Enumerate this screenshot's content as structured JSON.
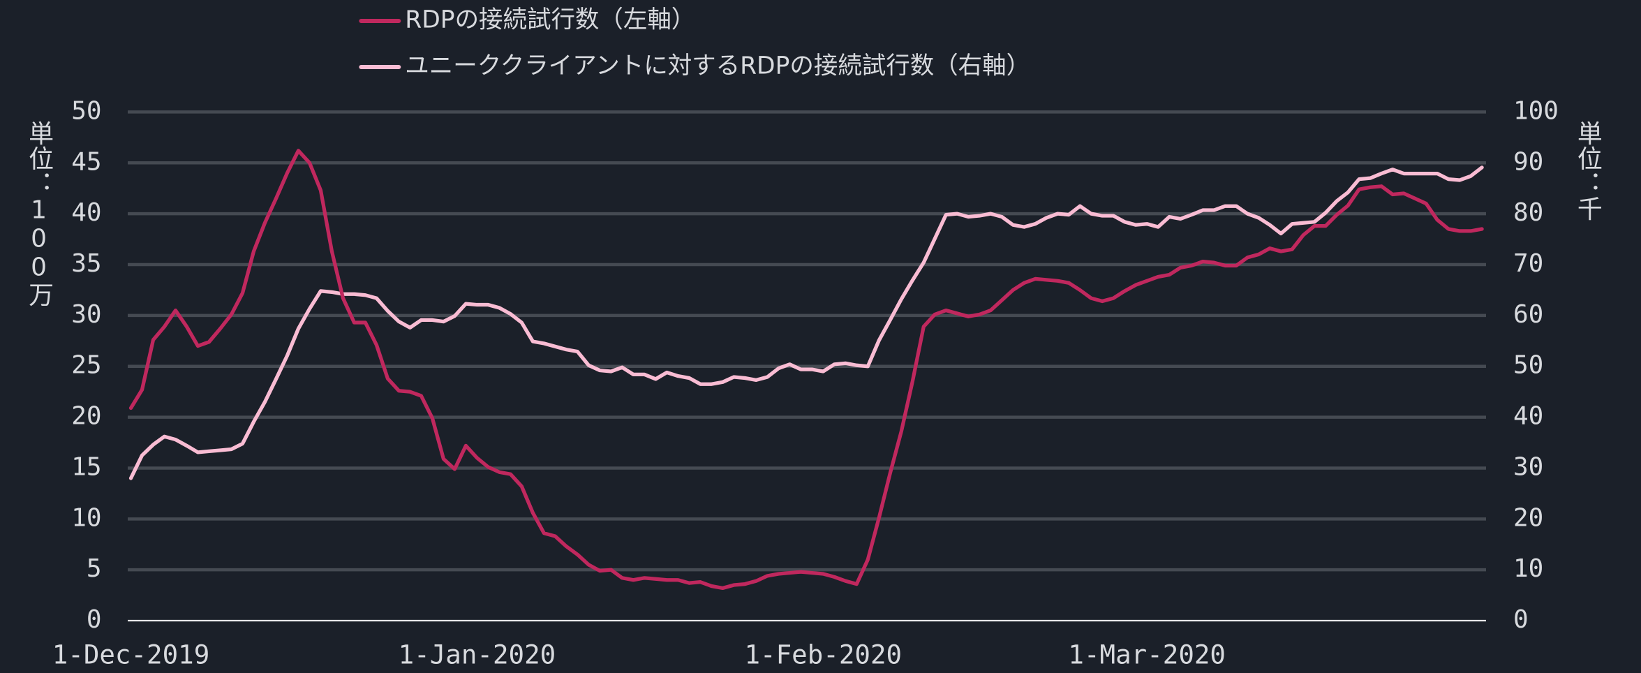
{
  "chart_data": {
    "type": "line",
    "legend": "top",
    "grid": true,
    "y_label": "単位：100万",
    "y2_label": "単位：千",
    "categories": [
      "1-Dec-2019",
      null,
      null,
      null,
      null,
      null,
      null,
      null,
      null,
      null,
      null,
      null,
      null,
      null,
      null,
      null,
      null,
      null,
      null,
      null,
      null,
      null,
      null,
      null,
      null,
      null,
      null,
      null,
      null,
      null,
      null,
      "1-Jan-2020",
      null,
      null,
      null,
      null,
      null,
      null,
      null,
      null,
      null,
      null,
      null,
      null,
      null,
      null,
      null,
      null,
      null,
      null,
      null,
      null,
      null,
      null,
      null,
      null,
      null,
      null,
      null,
      null,
      null,
      null,
      "1-Feb-2020",
      null,
      null,
      null,
      null,
      null,
      null,
      null,
      null,
      null,
      null,
      null,
      null,
      null,
      null,
      null,
      null,
      null,
      null,
      null,
      null,
      null,
      null,
      null,
      null,
      null,
      null,
      null,
      null,
      "1-Mar-2020",
      null,
      null,
      null,
      null,
      null,
      null,
      null,
      null,
      null,
      null,
      null,
      null,
      null,
      null,
      null,
      null,
      null,
      null,
      null,
      null,
      null,
      null,
      null,
      null,
      null,
      null,
      null,
      null,
      null,
      null
    ],
    "ylim": [
      0,
      50
    ],
    "yticks": [
      0,
      5,
      10,
      15,
      20,
      25,
      30,
      35,
      40,
      45,
      50
    ],
    "y2lim": [
      0,
      100
    ],
    "y2ticks": [
      0,
      10,
      20,
      30,
      40,
      50,
      60,
      70,
      80,
      90,
      100
    ],
    "series": [
      {
        "name": "RDPの接続試行数（左軸）",
        "color": "#c0285e",
        "axis": "y",
        "values": [
          20.9,
          22.7,
          27.6,
          28.9,
          30.5,
          28.9,
          27.0,
          27.4,
          28.7,
          30.1,
          32.2,
          36.3,
          39.1,
          41.5,
          44.0,
          46.2,
          45.0,
          42.3,
          36.3,
          31.7,
          29.3,
          29.3,
          27.1,
          23.8,
          22.6,
          22.5,
          22.1,
          19.9,
          15.9,
          14.9,
          17.2,
          16.0,
          15.1,
          14.6,
          14.4,
          13.2,
          10.6,
          8.6,
          8.3,
          7.3,
          6.5,
          5.5,
          4.9,
          5.0,
          4.2,
          4.0,
          4.2,
          4.1,
          4.0,
          4.0,
          3.7,
          3.8,
          3.4,
          3.2,
          3.5,
          3.6,
          3.9,
          4.4,
          4.6,
          4.7,
          4.8,
          4.7,
          4.6,
          4.3,
          3.9,
          3.6,
          6.0,
          10.1,
          14.5,
          18.6,
          23.5,
          28.9,
          30.1,
          30.5,
          30.2,
          29.9,
          30.1,
          30.5,
          31.5,
          32.5,
          33.2,
          33.6,
          33.5,
          33.4,
          33.2,
          32.5,
          31.7,
          31.4,
          31.7,
          32.4,
          33.0,
          33.4,
          33.8,
          34.0,
          34.7,
          34.9,
          35.3,
          35.2,
          34.9,
          34.9,
          35.7,
          36.0,
          36.6,
          36.3,
          36.5,
          37.9,
          38.8,
          38.8,
          39.9,
          40.8,
          42.4,
          42.6,
          42.7,
          41.9,
          42.0,
          41.5,
          41.0,
          39.4,
          38.5,
          38.3,
          38.3,
          38.5
        ]
      },
      {
        "name": "ユニーククライアントに対するRDPの接続試行数（右軸）",
        "color": "#f9bcd3",
        "axis": "y2",
        "values": [
          28,
          32.5,
          34.6,
          36.2,
          35.6,
          34.4,
          33.1,
          33.3,
          33.5,
          33.7,
          34.8,
          39.1,
          43.0,
          47.5,
          52.1,
          57.4,
          61.3,
          64.8,
          64.6,
          64.2,
          64.2,
          64.0,
          63.4,
          60.9,
          58.8,
          57.6,
          59.1,
          59.1,
          58.8,
          59.9,
          62.3,
          62.1,
          62.1,
          61.5,
          60.3,
          58.6,
          54.9,
          54.5,
          53.9,
          53.3,
          52.9,
          50.2,
          49.2,
          49.0,
          49.8,
          48.4,
          48.4,
          47.5,
          48.8,
          48.1,
          47.7,
          46.5,
          46.5,
          46.9,
          47.9,
          47.7,
          47.3,
          47.9,
          49.6,
          50.4,
          49.4,
          49.4,
          49.0,
          50.4,
          50.6,
          50.2,
          50.0,
          55.1,
          59.1,
          63.2,
          66.9,
          70.4,
          75.1,
          79.8,
          80.0,
          79.4,
          79.6,
          80.0,
          79.4,
          77.8,
          77.4,
          78.0,
          79.2,
          80.0,
          79.8,
          81.5,
          80.0,
          79.6,
          79.6,
          78.4,
          77.8,
          78.0,
          77.4,
          79.4,
          79.0,
          79.8,
          80.7,
          80.7,
          81.5,
          81.5,
          80.0,
          79.2,
          77.8,
          76.1,
          78.0,
          78.2,
          78.4,
          80.2,
          82.5,
          84.2,
          86.8,
          87.0,
          87.9,
          88.7,
          87.9,
          87.9,
          87.9,
          87.9,
          86.8,
          86.6,
          87.4,
          89.1
        ]
      }
    ]
  }
}
